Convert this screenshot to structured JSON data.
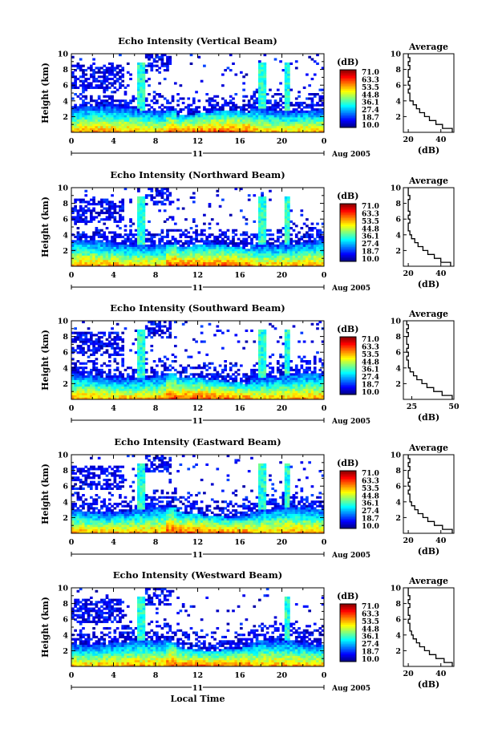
{
  "chart_data": [
    {
      "type": "heatmap",
      "title": "Echo Intensity (Vertical Beam)",
      "ylabel": "Height (km)",
      "ylim": [
        0,
        10
      ],
      "xlim": [
        0,
        24
      ],
      "x_ticks": [
        "0",
        "4",
        "8",
        "12",
        "16",
        "20",
        "0"
      ],
      "y_ticks": [
        "2",
        "4",
        "6",
        "8",
        "10"
      ],
      "day_label": "11",
      "date_label": "Aug 2005",
      "colorbar_label": "(dB)",
      "colorbar_ticks": [
        "71.0",
        "63.3",
        "53.5",
        "44.8",
        "36.1",
        "27.4",
        "18.7",
        "10.0"
      ],
      "colorbar_range": [
        10.0,
        71.0
      ],
      "average_profile": {
        "title": "Average",
        "xlabel": "(dB)",
        "x_ticks": [
          "20",
          "40"
        ],
        "xlim": [
          17,
          48
        ],
        "heights_km": [
          0.5,
          1.0,
          1.5,
          2.0,
          2.5,
          3.0,
          3.5,
          4.0,
          4.5,
          5.0,
          5.5,
          6.0,
          6.5,
          7.0,
          7.5,
          8.0,
          8.5,
          9.0,
          9.5,
          10.0
        ],
        "values_db": [
          47,
          41,
          37,
          33,
          30,
          27,
          25,
          23,
          21,
          21,
          20,
          21,
          20,
          21,
          20,
          20,
          21,
          20,
          21,
          20
        ]
      }
    },
    {
      "type": "heatmap",
      "title": "Echo Intensity (Northward Beam)",
      "ylabel": "Height (km)",
      "ylim": [
        0,
        10
      ],
      "xlim": [
        0,
        24
      ],
      "x_ticks": [
        "0",
        "4",
        "8",
        "12",
        "16",
        "20",
        "0"
      ],
      "y_ticks": [
        "2",
        "4",
        "6",
        "8",
        "10"
      ],
      "day_label": "11",
      "date_label": "Aug 2005",
      "colorbar_label": "(dB)",
      "colorbar_ticks": [
        "71.0",
        "63.3",
        "53.5",
        "44.8",
        "36.1",
        "27.4",
        "18.7",
        "10.0"
      ],
      "colorbar_range": [
        10.0,
        71.0
      ],
      "average_profile": {
        "title": "Average",
        "xlabel": "(dB)",
        "x_ticks": [
          "20",
          "40"
        ],
        "xlim": [
          17,
          48
        ],
        "heights_km": [
          0.5,
          1.0,
          1.5,
          2.0,
          2.5,
          3.0,
          3.5,
          4.0,
          4.5,
          5.0,
          5.5,
          6.0,
          6.5,
          7.0,
          7.5,
          8.0,
          8.5,
          9.0,
          9.5,
          10.0
        ],
        "values_db": [
          46,
          40,
          36,
          32,
          29,
          26,
          24,
          22,
          21,
          20,
          20,
          21,
          20,
          21,
          20,
          20,
          20,
          21,
          20,
          20
        ]
      }
    },
    {
      "type": "heatmap",
      "title": "Echo Intensity (Southward Beam)",
      "ylabel": "Height (km)",
      "ylim": [
        0,
        10
      ],
      "xlim": [
        0,
        24
      ],
      "x_ticks": [
        "0",
        "4",
        "8",
        "12",
        "16",
        "20",
        "0"
      ],
      "y_ticks": [
        "2",
        "4",
        "6",
        "8",
        "10"
      ],
      "day_label": "11",
      "date_label": "Aug 2005",
      "colorbar_label": "(dB)",
      "colorbar_ticks": [
        "71.0",
        "63.3",
        "53.5",
        "44.8",
        "36.1",
        "27.4",
        "18.7",
        "10.0"
      ],
      "colorbar_range": [
        10.0,
        71.0
      ],
      "average_profile": {
        "title": "Average",
        "xlabel": "(dB)",
        "x_ticks": [
          "25",
          "50"
        ],
        "xlim": [
          20,
          50
        ],
        "heights_km": [
          0.5,
          1.0,
          1.5,
          2.0,
          2.5,
          3.0,
          3.5,
          4.0,
          4.5,
          5.0,
          5.5,
          6.0,
          6.5,
          7.0,
          7.5,
          8.0,
          8.5,
          9.0,
          9.5,
          10.0
        ],
        "values_db": [
          49,
          43,
          38,
          34,
          31,
          28,
          26,
          24,
          23,
          23,
          22,
          23,
          22,
          23,
          22,
          22,
          23,
          22,
          23,
          22
        ]
      }
    },
    {
      "type": "heatmap",
      "title": "Echo Intensity (Eastward Beam)",
      "ylabel": "Height (km)",
      "ylim": [
        0,
        10
      ],
      "xlim": [
        0,
        24
      ],
      "x_ticks": [
        "0",
        "4",
        "8",
        "12",
        "16",
        "20",
        "0"
      ],
      "y_ticks": [
        "2",
        "4",
        "6",
        "8",
        "10"
      ],
      "day_label": "11",
      "date_label": "Aug 2005",
      "colorbar_label": "(dB)",
      "colorbar_ticks": [
        "71.0",
        "63.3",
        "53.5",
        "44.8",
        "36.1",
        "27.4",
        "18.7",
        "10.0"
      ],
      "colorbar_range": [
        10.0,
        71.0
      ],
      "average_profile": {
        "title": "Average",
        "xlabel": "(dB)",
        "x_ticks": [
          "20",
          "40"
        ],
        "xlim": [
          17,
          48
        ],
        "heights_km": [
          0.5,
          1.0,
          1.5,
          2.0,
          2.5,
          3.0,
          3.5,
          4.0,
          4.5,
          5.0,
          5.5,
          6.0,
          6.5,
          7.0,
          7.5,
          8.0,
          8.5,
          9.0,
          9.5,
          10.0
        ],
        "values_db": [
          47,
          41,
          36,
          32,
          29,
          26,
          24,
          22,
          21,
          21,
          20,
          21,
          20,
          21,
          20,
          20,
          21,
          20,
          21,
          20
        ]
      }
    },
    {
      "type": "heatmap",
      "title": "Echo Intensity (Westward Beam)",
      "ylabel": "Height (km)",
      "xlabel": "Local Time",
      "ylim": [
        0,
        10
      ],
      "xlim": [
        0,
        24
      ],
      "x_ticks": [
        "0",
        "4",
        "8",
        "12",
        "16",
        "20",
        "0"
      ],
      "y_ticks": [
        "2",
        "4",
        "6",
        "8",
        "10"
      ],
      "day_label": "11",
      "date_label": "Aug 2005",
      "colorbar_label": "(dB)",
      "colorbar_ticks": [
        "71.0",
        "63.3",
        "53.5",
        "44.8",
        "36.1",
        "27.4",
        "18.7",
        "10.0"
      ],
      "colorbar_range": [
        10.0,
        71.0
      ],
      "average_profile": {
        "title": "Average",
        "xlabel": "(dB)",
        "x_ticks": [
          "20",
          "40"
        ],
        "xlim": [
          17,
          48
        ],
        "heights_km": [
          0.5,
          1.0,
          1.5,
          2.0,
          2.5,
          3.0,
          3.5,
          4.0,
          4.5,
          5.0,
          5.5,
          6.0,
          6.5,
          7.0,
          7.5,
          8.0,
          8.5,
          9.0,
          9.5,
          10.0
        ],
        "values_db": [
          47,
          42,
          37,
          33,
          30,
          27,
          25,
          23,
          22,
          21,
          21,
          20,
          21,
          20,
          20,
          21,
          20,
          21,
          20,
          20
        ]
      }
    }
  ]
}
